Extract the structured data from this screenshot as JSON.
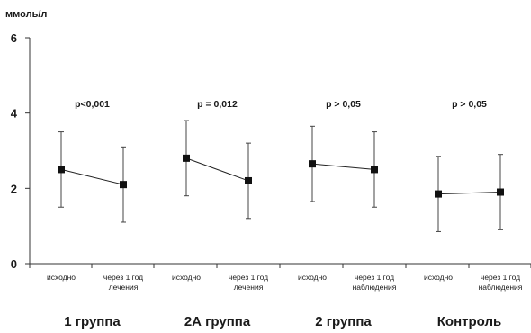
{
  "chart_data": {
    "type": "scatter",
    "ylabel": "ммоль/л",
    "ylim": [
      0,
      6
    ],
    "yticks": [
      "0",
      "2",
      "4",
      "6"
    ],
    "grid": false,
    "groups": [
      {
        "name": "1 группа",
        "p_value": "p<0,001",
        "points": [
          {
            "label": [
              "исходно"
            ],
            "mean": 2.5,
            "upper": 3.5,
            "lower": 1.5
          },
          {
            "label": [
              "через 1 год",
              "лечения"
            ],
            "mean": 2.1,
            "upper": 3.1,
            "lower": 1.1
          }
        ]
      },
      {
        "name": "2А группа",
        "p_value": "p = 0,012",
        "points": [
          {
            "label": [
              "исходно"
            ],
            "mean": 2.8,
            "upper": 3.8,
            "lower": 1.8
          },
          {
            "label": [
              "через 1 год",
              "лечения"
            ],
            "mean": 2.2,
            "upper": 3.2,
            "lower": 1.2
          }
        ]
      },
      {
        "name": "2 группа",
        "p_value": "p > 0,05",
        "points": [
          {
            "label": [
              "исходно"
            ],
            "mean": 2.65,
            "upper": 3.65,
            "lower": 1.65
          },
          {
            "label": [
              "через 1 год",
              "наблюдения"
            ],
            "mean": 2.5,
            "upper": 3.5,
            "lower": 1.5
          }
        ]
      },
      {
        "name": "Контроль",
        "p_value": "p > 0,05",
        "points": [
          {
            "label": [
              "исходно"
            ],
            "mean": 1.85,
            "upper": 2.85,
            "lower": 0.85
          },
          {
            "label": [
              "через 1 год",
              "наблюдения"
            ],
            "mean": 1.9,
            "upper": 2.9,
            "lower": 0.9
          }
        ]
      }
    ]
  }
}
